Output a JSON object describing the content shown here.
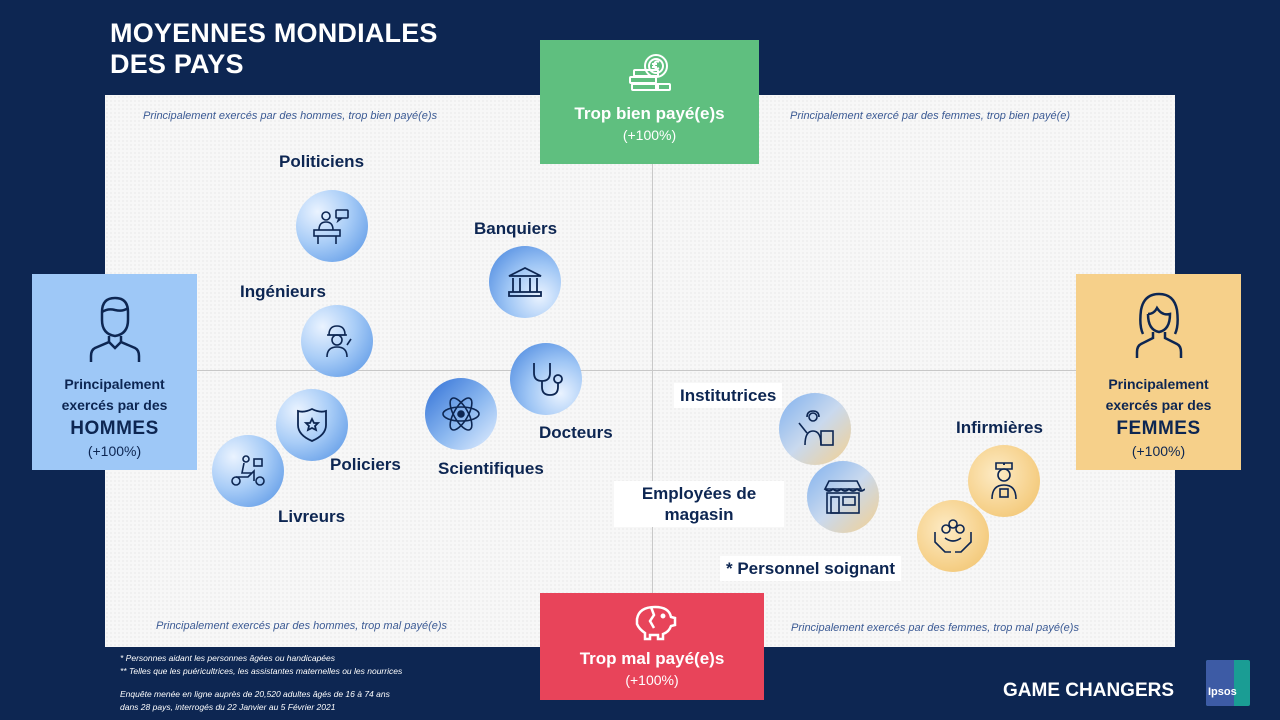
{
  "title": {
    "line1": "MOYENNES MONDIALES",
    "line2": "DES PAYS"
  },
  "quadrants": {
    "top_left": "Principalement exercés par des hommes, trop bien payé(e)s",
    "top_right": "Principalement exercé par des femmes, trop bien payé(e)",
    "bottom_left": "Principalement exercés par des hommes, trop mal payé(e)s",
    "bottom_right": "Principalement exercés par des femmes, trop mal payé(e)s"
  },
  "boxes": {
    "top": {
      "title": "Trop bien payé(e)s",
      "sub": "(+100%)",
      "icon": "money-coins-icon"
    },
    "bottom": {
      "title": "Trop mal payé(e)s",
      "sub": "(+100%)",
      "icon": "broken-piggy-bank-icon"
    },
    "left": {
      "line1": "Principalement",
      "line2": "exercés par des",
      "big": "HOMMES",
      "sub": "(+100%)",
      "icon": "man-icon"
    },
    "right": {
      "line1": "Principalement",
      "line2": "exercés par des",
      "big": "FEMMES",
      "sub": "(+100%)",
      "icon": "woman-icon"
    }
  },
  "professions": {
    "politiciens": "Politiciens",
    "banquiers": "Banquiers",
    "ingenieurs": "Ingénieurs",
    "docteurs": "Docteurs",
    "scientifiques": "Scientifiques",
    "policiers": "Policiers",
    "livreurs": "Livreurs",
    "institutrices": "Institutrices",
    "employees_line1": "Employées de",
    "employees_line2": "magasin",
    "infirmieres": "Infirmières",
    "personnel": "* Personnel soignant"
  },
  "footnotes": {
    "f1": "* Personnes aidant les personnes âgées ou handicapées",
    "f2": "** Telles que les puéricultrices, les assistantes maternelles ou les nourrices",
    "f3": "Enquête menée en ligne auprès de 20,520 adultes âgés de 16 à 74 ans",
    "f4": "dans 28 pays, interrogés du 22 Janvier au 5 Février 2021"
  },
  "brand": {
    "game_changers": "GAME CHANGERS",
    "logo_text": "Ipsos"
  },
  "colors": {
    "background": "#0d2652",
    "top_box": "#5fbf7f",
    "bottom_box": "#e8445a",
    "left_box": "#9ec8f7",
    "right_box": "#f6d08a"
  }
}
